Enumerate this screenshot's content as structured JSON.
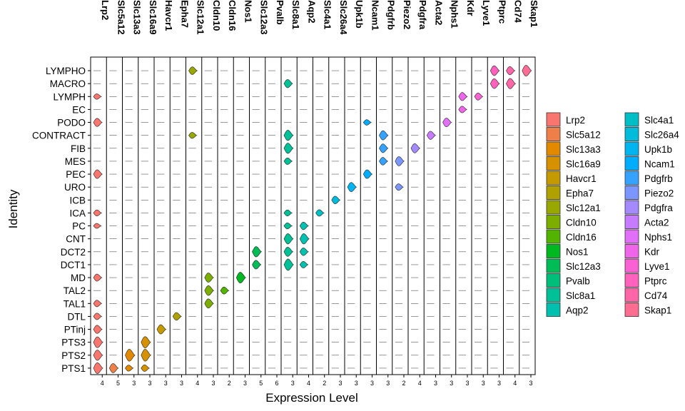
{
  "chart_data": {
    "type": "violin",
    "xlabel": "Expression Level",
    "ylabel": "Identity",
    "genes": [
      "Lrp2",
      "Slc5a12",
      "Slc13a3",
      "Slc16a9",
      "Havcr1",
      "Epha7",
      "Slc12a1",
      "Cldn10",
      "Cldn16",
      "Nos1",
      "Slc12a3",
      "Pvalb",
      "Slc8a1",
      "Aqp2",
      "Slc4a1",
      "Slc26a4",
      "Upk1b",
      "Ncam1",
      "Pdgfrb",
      "Piezo2",
      "Pdgfra",
      "Acta2",
      "Nphs1",
      "Kdr",
      "Lyve1",
      "Ptprc",
      "Cd74",
      "Skap1"
    ],
    "colors": [
      "#F8766D",
      "#EF7F49",
      "#E38900",
      "#D59100",
      "#C49A00",
      "#B0A100",
      "#99A800",
      "#7CAE00",
      "#53B400",
      "#00B81F",
      "#00BC56",
      "#00BF7A",
      "#00C097",
      "#00C1B0",
      "#00BFC4",
      "#00BBDA",
      "#00B4EF",
      "#00ACFC",
      "#35A2FF",
      "#7C96FF",
      "#A58AFF",
      "#C77CFF",
      "#E16FF8",
      "#F066EA",
      "#FA62D4",
      "#FF62BC",
      "#FF66A8",
      "#FF6C91"
    ],
    "identities": [
      "LYMPHO",
      "MACRO",
      "LYMPH",
      "EC",
      "PODO",
      "CONTRACT",
      "FIB",
      "MES",
      "PEC",
      "URO",
      "ICB",
      "ICA",
      "PC",
      "CNT",
      "DCT2",
      "DCT1",
      "MD",
      "TAL2",
      "TAL1",
      "DTL",
      "PTinj",
      "PTS3",
      "PTS2",
      "PTS1"
    ],
    "max_tick_labels": [
      "4",
      "5",
      "3",
      "3",
      "3",
      "3",
      "4",
      "3",
      "2",
      "3",
      "5",
      "6",
      "3",
      "4",
      "2",
      "3",
      "3",
      "3",
      "3",
      "2",
      "4",
      "3",
      "3",
      "3",
      "3",
      "3",
      "4",
      "3"
    ],
    "violins": [
      [
        0,
        4,
        0.5
      ],
      [
        0,
        2,
        0.25
      ],
      [
        0,
        8,
        0.55
      ],
      [
        0,
        16,
        0.4
      ],
      [
        0,
        18,
        0.35
      ],
      [
        0,
        19,
        0.35
      ],
      [
        0,
        20,
        0.5
      ],
      [
        0,
        21,
        0.75
      ],
      [
        0,
        22,
        0.7
      ],
      [
        0,
        23,
        0.75
      ],
      [
        0,
        11,
        0.3
      ],
      [
        0,
        12,
        0.2
      ],
      [
        1,
        23,
        0.6
      ],
      [
        2,
        22,
        0.85
      ],
      [
        2,
        23,
        0.3
      ],
      [
        3,
        21,
        0.8
      ],
      [
        3,
        22,
        0.85
      ],
      [
        3,
        23,
        0.35
      ],
      [
        4,
        20,
        0.6
      ],
      [
        5,
        19,
        0.45
      ],
      [
        6,
        0,
        0.45
      ],
      [
        6,
        5,
        0.3
      ],
      [
        7,
        16,
        0.6
      ],
      [
        7,
        17,
        0.65
      ],
      [
        7,
        18,
        0.6
      ],
      [
        8,
        17,
        0.4
      ],
      [
        9,
        16,
        0.75
      ],
      [
        10,
        14,
        0.7
      ],
      [
        10,
        15,
        0.55
      ],
      [
        12,
        1,
        0.5
      ],
      [
        12,
        5,
        0.7
      ],
      [
        12,
        6,
        0.7
      ],
      [
        12,
        7,
        0.35
      ],
      [
        12,
        11,
        0.3
      ],
      [
        12,
        12,
        0.3
      ],
      [
        12,
        13,
        0.7
      ],
      [
        12,
        14,
        0.6
      ],
      [
        12,
        15,
        0.8
      ],
      [
        13,
        12,
        0.45
      ],
      [
        13,
        13,
        0.7
      ],
      [
        13,
        14,
        0.45
      ],
      [
        13,
        15,
        0.35
      ],
      [
        14,
        11,
        0.35
      ],
      [
        15,
        10,
        0.45
      ],
      [
        16,
        9,
        0.6
      ],
      [
        17,
        8,
        0.55
      ],
      [
        17,
        4,
        0.25
      ],
      [
        18,
        5,
        0.6
      ],
      [
        18,
        6,
        0.55
      ],
      [
        18,
        7,
        0.45
      ],
      [
        19,
        7,
        0.6
      ],
      [
        19,
        9,
        0.35
      ],
      [
        20,
        6,
        0.6
      ],
      [
        21,
        5,
        0.5
      ],
      [
        22,
        4,
        0.55
      ],
      [
        23,
        2,
        0.5
      ],
      [
        23,
        3,
        0.35
      ],
      [
        24,
        2,
        0.4
      ],
      [
        25,
        0,
        0.65
      ],
      [
        25,
        1,
        0.65
      ],
      [
        26,
        1,
        0.7
      ],
      [
        26,
        0,
        0.5
      ],
      [
        27,
        0,
        0.75
      ]
    ]
  }
}
